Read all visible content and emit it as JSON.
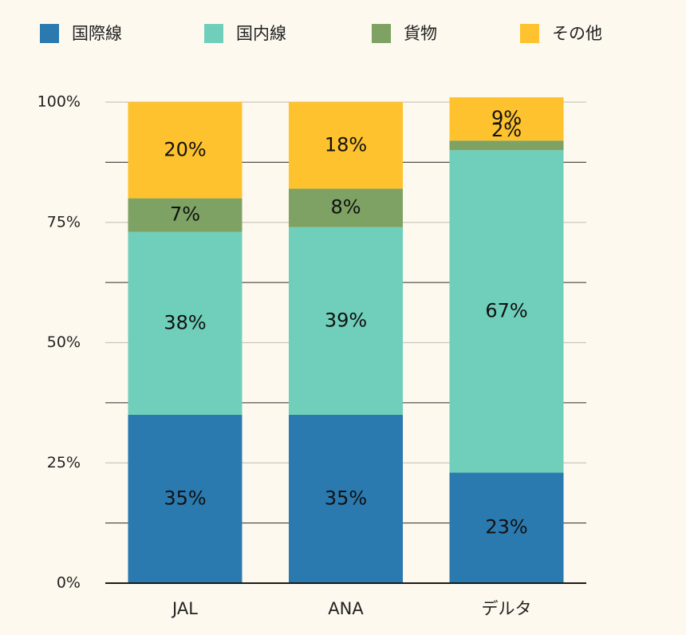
{
  "chart_data": {
    "type": "bar",
    "stacked": true,
    "categories": [
      "JAL",
      "ANA",
      "デルタ"
    ],
    "series": [
      {
        "name": "国際線",
        "color": "#2A7AB0",
        "values": [
          35,
          35,
          23
        ],
        "labels": [
          "35%",
          "35%",
          "23%"
        ]
      },
      {
        "name": "国内線",
        "color": "#70CFBA",
        "values": [
          38,
          39,
          67
        ],
        "labels": [
          "38%",
          "39%",
          "67%"
        ]
      },
      {
        "name": "貨物",
        "color": "#7EA263",
        "values": [
          7,
          8,
          2
        ],
        "labels": [
          "7%",
          "8%",
          "2%"
        ]
      },
      {
        "name": "その他",
        "color": "#FDC22D",
        "values": [
          20,
          18,
          9
        ],
        "labels": [
          "20%",
          "18%",
          "9%"
        ]
      }
    ],
    "yticks": [
      "0%",
      "25%",
      "50%",
      "75%",
      "100%"
    ],
    "ylim": [
      0,
      100
    ],
    "legend": "top",
    "grid": true
  }
}
